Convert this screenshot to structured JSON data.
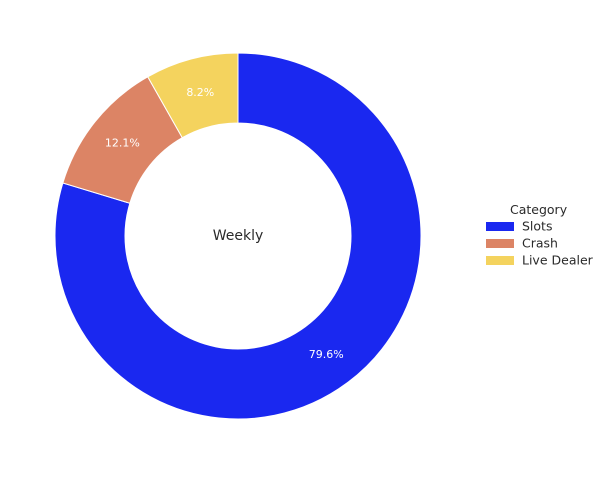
{
  "chart_data": {
    "type": "pie",
    "style": "donut",
    "center_label": "Weekly",
    "legend": {
      "title": "Category",
      "placement": "right"
    },
    "categories": [
      "Slots",
      "Crash",
      "Live Dealer"
    ],
    "values": [
      79.6,
      12.1,
      8.2
    ],
    "value_labels": [
      "79.6%",
      "12.1%",
      "8.2%"
    ],
    "colors": [
      "#1a28f0",
      "#dc8465",
      "#f4d35e"
    ],
    "direction": "clockwise",
    "start_angle": "12 o'clock"
  }
}
